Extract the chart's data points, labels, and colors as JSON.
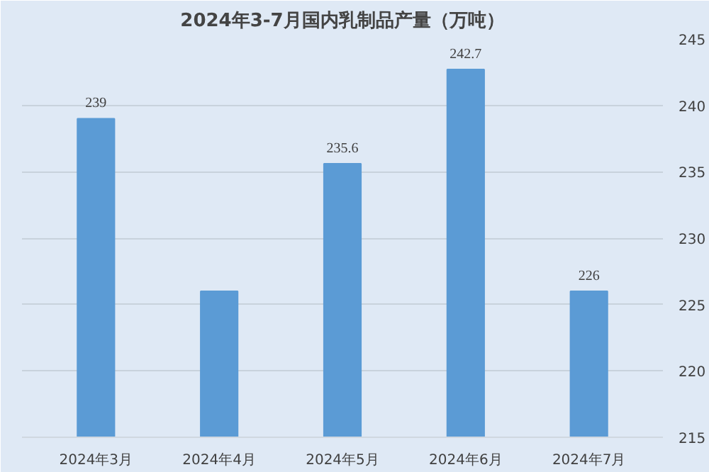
{
  "chart_data": {
    "type": "bar",
    "title": "2024年3-7月国内乳制品产量（万吨）",
    "categories": [
      "2024年3月",
      "2024年4月",
      "2024年5月",
      "2024年6月",
      "2024年7月"
    ],
    "values": [
      239,
      226,
      235.6,
      242.7,
      226
    ],
    "value_labels": [
      "239",
      null,
      "235.6",
      "242.7",
      "226"
    ],
    "color": "#5b9bd5",
    "ylim": [
      215,
      245
    ],
    "yticks": [
      215,
      220,
      225,
      230,
      235,
      240,
      245
    ],
    "grid": "y"
  }
}
